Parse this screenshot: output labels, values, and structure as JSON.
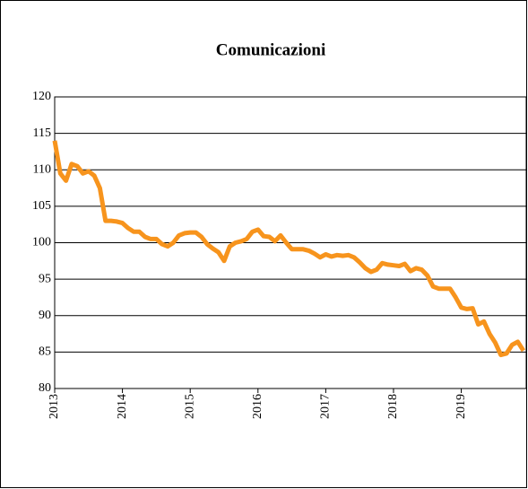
{
  "chart_data": {
    "type": "line",
    "title": "Comunicazioni",
    "categories": [
      "2013",
      null,
      null,
      null,
      null,
      null,
      null,
      null,
      null,
      null,
      null,
      null,
      "2014",
      null,
      null,
      null,
      null,
      null,
      null,
      null,
      null,
      null,
      null,
      null,
      "2015",
      null,
      null,
      null,
      null,
      null,
      null,
      null,
      null,
      null,
      null,
      null,
      "2016",
      null,
      null,
      null,
      null,
      null,
      null,
      null,
      null,
      null,
      null,
      null,
      "2017",
      null,
      null,
      null,
      null,
      null,
      null,
      null,
      null,
      null,
      null,
      null,
      "2018",
      null,
      null,
      null,
      null,
      null,
      null,
      null,
      null,
      null,
      null,
      null,
      "2019",
      null,
      null,
      null,
      null,
      null,
      null,
      null,
      null,
      null,
      null,
      null
    ],
    "series": [
      {
        "name": "Comunicazioni",
        "color": "#f7941d",
        "values": [
          114,
          109.5,
          108.5,
          110.8,
          110.5,
          109.5,
          109.8,
          109.2,
          107.5,
          103,
          103,
          102.9,
          102.7,
          102,
          101.5,
          101.5,
          100.8,
          100.5,
          100.5,
          99.8,
          99.5,
          100,
          101,
          101.3,
          101.4,
          101.4,
          100.8,
          99.8,
          99.2,
          98.7,
          97.5,
          99.5,
          100,
          100.2,
          100.5,
          101.5,
          101.8,
          100.9,
          100.8,
          100.2,
          101,
          100,
          99.1,
          99.1,
          99.1,
          98.9,
          98.5,
          98,
          98.4,
          98.1,
          98.3,
          98.2,
          98.3,
          98,
          97.3,
          96.5,
          96,
          96.3,
          97.2,
          97,
          96.9,
          96.8,
          97.1,
          96.1,
          96.5,
          96.3,
          95.5,
          94,
          93.7,
          93.7,
          93.7,
          92.5,
          91.1,
          90.9,
          91,
          88.8,
          89.2,
          87.5,
          86.3,
          84.6,
          84.8,
          86,
          86.4,
          85.2
        ]
      }
    ],
    "ylim": [
      80,
      120
    ],
    "yticks": [
      80,
      85,
      90,
      95,
      100,
      105,
      110,
      115,
      120
    ],
    "grid": true
  }
}
